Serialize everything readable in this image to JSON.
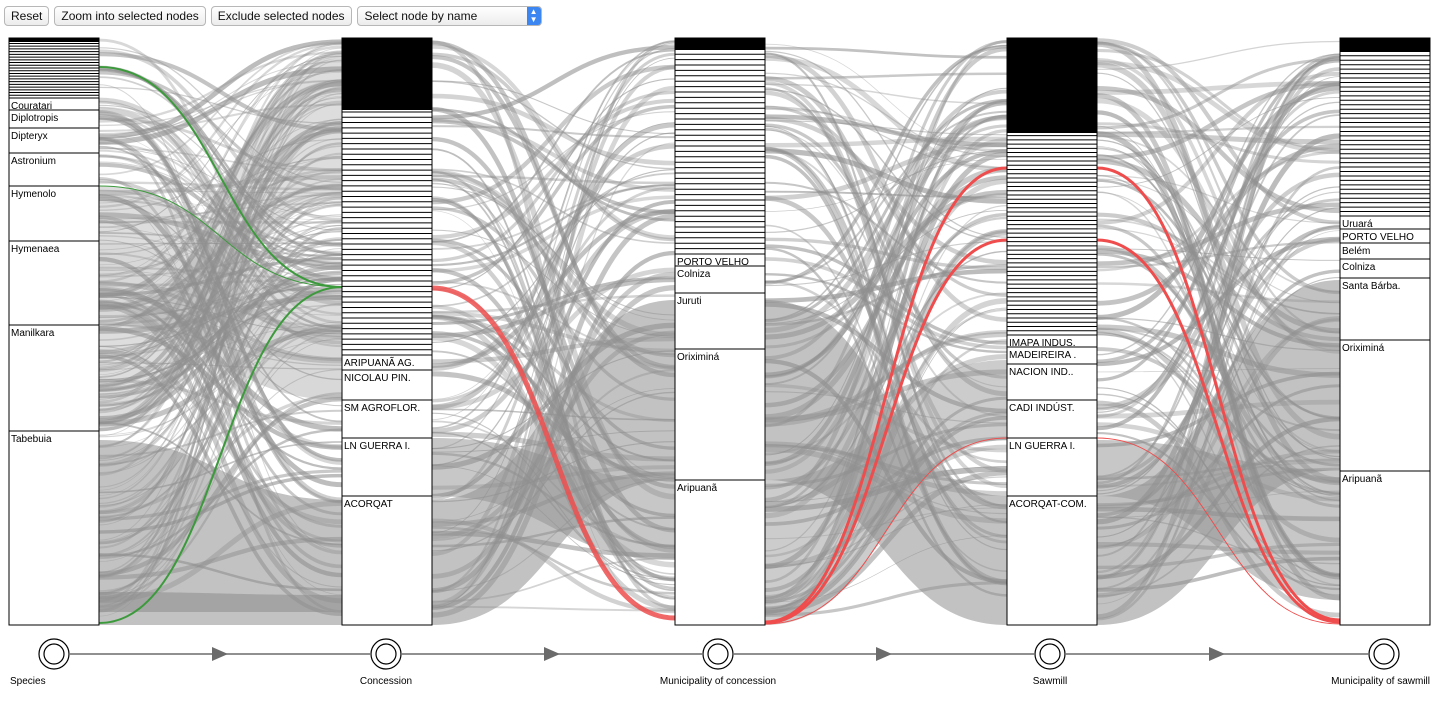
{
  "toolbar": {
    "reset_label": "Reset",
    "zoom_label": "Zoom into selected nodes",
    "exclude_label": "Exclude selected nodes",
    "select_placeholder": "Select node by name"
  },
  "colors": {
    "link": "#8f8f8f",
    "highlight_species": "#3c9a3c",
    "highlight_flow": "#ef4d4d",
    "node_border": "#000000",
    "axis": "#6b6b6b"
  },
  "columns": [
    {
      "name": "Species",
      "labeled_nodes": [
        "Couratari",
        "Diplotropis",
        "Dipteryx",
        "Astronium",
        "Hymenolo",
        "Hymenaea",
        "Manilkara",
        "Tabebuia"
      ]
    },
    {
      "name": "Concession",
      "labeled_nodes": [
        "ARIPUANÃ AG.",
        "NICOLAU PIN.",
        "SM AGROFLOR.",
        "LN GUERRA I.",
        "ACORQAT"
      ]
    },
    {
      "name": "Municipality of concession",
      "labeled_nodes": [
        "PORTO VELHO",
        "Colniza",
        "Juruti",
        "Oriximiná",
        "Aripuanã"
      ]
    },
    {
      "name": "Sawmill",
      "labeled_nodes": [
        "IMAPA INDUS.",
        "MADEIREIRA .",
        "NACION IND..",
        "CADI INDÚST.",
        "LN GUERRA I.",
        "ACORQAT-COM."
      ]
    },
    {
      "name": "Municipality of sawmill",
      "labeled_nodes": [
        "Uruará",
        "PORTO VELHO",
        "Belém",
        "Colniza",
        "Santa Bárba.",
        "Oriximiná",
        "Aripuanã"
      ]
    }
  ]
}
